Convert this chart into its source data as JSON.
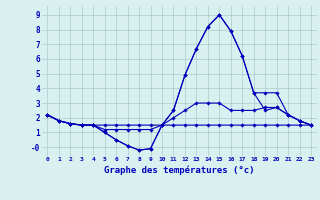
{
  "title": "Graphe des températures (°c)",
  "x_hours": [
    0,
    1,
    2,
    3,
    4,
    5,
    6,
    7,
    8,
    9,
    10,
    11,
    12,
    13,
    14,
    15,
    16,
    17,
    18,
    19,
    20,
    21,
    22,
    23
  ],
  "line_main": [
    2.2,
    1.8,
    1.6,
    1.5,
    1.5,
    1.0,
    0.5,
    0.1,
    -0.2,
    -0.1,
    1.5,
    2.5,
    4.9,
    6.7,
    8.2,
    9.0,
    7.9,
    6.2,
    3.7,
    2.5,
    2.7,
    2.2,
    1.8,
    1.5
  ],
  "line_min": [
    2.2,
    1.8,
    1.6,
    1.5,
    1.5,
    1.0,
    0.5,
    0.1,
    -0.2,
    -0.1,
    1.5,
    1.5,
    1.5,
    1.5,
    1.5,
    1.5,
    1.5,
    1.5,
    1.5,
    1.5,
    1.5,
    1.5,
    1.5,
    1.5
  ],
  "line_max": [
    2.2,
    1.8,
    1.6,
    1.5,
    1.5,
    1.5,
    1.5,
    1.5,
    1.5,
    1.5,
    1.5,
    2.5,
    4.9,
    6.7,
    8.2,
    9.0,
    7.9,
    6.2,
    3.7,
    3.7,
    3.7,
    2.2,
    1.8,
    1.5
  ],
  "line_avg": [
    2.2,
    1.8,
    1.6,
    1.5,
    1.5,
    1.2,
    1.2,
    1.2,
    1.2,
    1.2,
    1.5,
    2.0,
    2.5,
    3.0,
    3.0,
    3.0,
    2.5,
    2.5,
    2.5,
    2.7,
    2.7,
    2.2,
    1.8,
    1.5
  ],
  "line_color": "#0000bb",
  "bg_color": "#d8f0f0",
  "grid_color": "#aacccc",
  "ylim": [
    -0.6,
    9.6
  ],
  "xlim": [
    -0.5,
    23.5
  ]
}
